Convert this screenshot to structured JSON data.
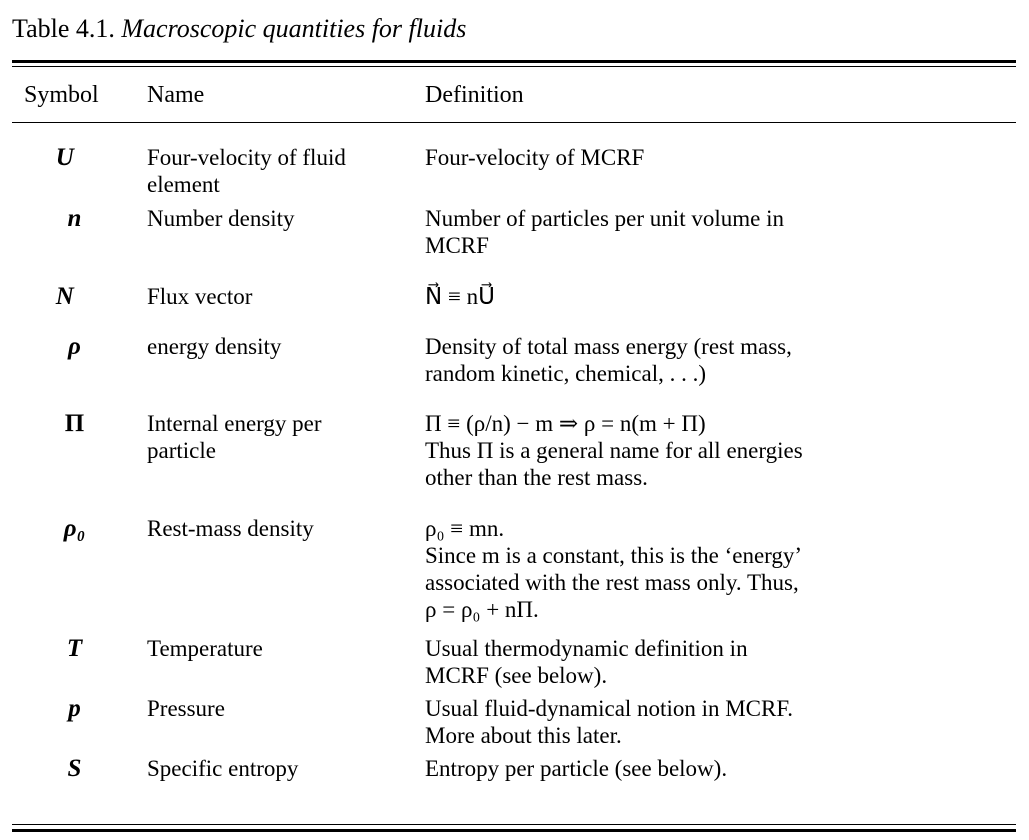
{
  "caption": {
    "number": "Table 4.1.",
    "title": "Macroscopic quantities for fluids"
  },
  "headers": {
    "symbol": "Symbol",
    "name": "Name",
    "definition": "Definition"
  },
  "rows": [
    {
      "symbol": "U⃗",
      "name": [
        "Four-velocity of fluid",
        "element"
      ],
      "definition": [
        "Four-velocity of MCRF"
      ]
    },
    {
      "symbol": "n",
      "name": [
        "Number density"
      ],
      "definition": [
        "Number of particles per unit volume in",
        "MCRF"
      ]
    },
    {
      "symbol": "N⃗",
      "name": [
        "Flux vector"
      ],
      "definition": [
        "N⃗ ≡ nU⃗"
      ]
    },
    {
      "symbol": "ρ",
      "name": [
        "energy density"
      ],
      "definition": [
        "Density of total mass energy (rest mass,",
        "random kinetic, chemical, . . .)"
      ]
    },
    {
      "symbol": "Π",
      "name": [
        "Internal energy per",
        "particle"
      ],
      "definition": [
        "Π ≡ (ρ/n) − m ⇒ ρ = n(m + Π)",
        "Thus Π is a general name for all energies",
        "other than the rest mass."
      ]
    },
    {
      "symbol": "ρ₀",
      "name": [
        "Rest-mass density"
      ],
      "definition": [
        "ρ₀ ≡ mn.",
        "Since m is a constant, this is the ‘energy’",
        "associated with the rest mass only. Thus,",
        "ρ = ρ₀ + nΠ."
      ]
    },
    {
      "symbol": "T",
      "name": [
        "Temperature"
      ],
      "definition": [
        "Usual thermodynamic definition in",
        "MCRF (see below)."
      ]
    },
    {
      "symbol": "p",
      "name": [
        "Pressure"
      ],
      "definition": [
        "Usual fluid-dynamical notion in MCRF.",
        "More about this later."
      ]
    },
    {
      "symbol": "S",
      "name": [
        "Specific entropy"
      ],
      "definition": [
        "Entropy per particle (see below)."
      ]
    }
  ]
}
